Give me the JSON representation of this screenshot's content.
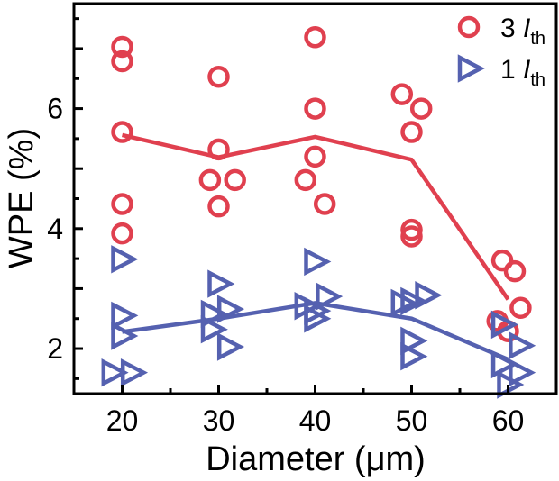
{
  "chart_data": {
    "type": "scatter",
    "title": "",
    "xlabel": "Diameter (μm)",
    "ylabel": "WPE (%)",
    "xlim": [
      15,
      65
    ],
    "ylim": [
      1.25,
      7.75
    ],
    "xticks": [
      20,
      30,
      40,
      50,
      60
    ],
    "yticks": [
      2,
      4,
      6
    ],
    "grid": false,
    "legend_position": "top-right",
    "series": [
      {
        "name": "3 Ith",
        "legend_number": "3",
        "legend_symbol": "I",
        "legend_subscript": "th",
        "marker": "circle-open",
        "color": "#e0404f",
        "points": [
          [
            20,
            7.03
          ],
          [
            20,
            6.79
          ],
          [
            20,
            5.61
          ],
          [
            20,
            4.41
          ],
          [
            20,
            3.92
          ],
          [
            30,
            6.53
          ],
          [
            30,
            5.32
          ],
          [
            29.1,
            4.81
          ],
          [
            31.7,
            4.81
          ],
          [
            30,
            4.37
          ],
          [
            40,
            7.19
          ],
          [
            40,
            6.0
          ],
          [
            40,
            5.2
          ],
          [
            39.0,
            4.81
          ],
          [
            41.0,
            4.41
          ],
          [
            49.0,
            6.24
          ],
          [
            51.0,
            6.0
          ],
          [
            50,
            5.61
          ],
          [
            50,
            3.98
          ],
          [
            50,
            3.87
          ],
          [
            59.4,
            3.47
          ],
          [
            60.7,
            3.29
          ],
          [
            61.3,
            2.68
          ],
          [
            58.9,
            2.46
          ],
          [
            60,
            2.29
          ]
        ],
        "line": [
          [
            20,
            5.56
          ],
          [
            30,
            5.19
          ],
          [
            40,
            5.53
          ],
          [
            50,
            5.15
          ],
          [
            60,
            2.82
          ]
        ]
      },
      {
        "name": "1 Ith",
        "legend_number": "1",
        "legend_symbol": "I",
        "legend_subscript": "th",
        "marker": "triangle-right-open",
        "color": "#5561b0",
        "points": [
          [
            20,
            3.49
          ],
          [
            20,
            2.55
          ],
          [
            20,
            2.21
          ],
          [
            19,
            1.6
          ],
          [
            21,
            1.6
          ],
          [
            30,
            3.08
          ],
          [
            29.3,
            2.58
          ],
          [
            31,
            2.66
          ],
          [
            29.3,
            2.32
          ],
          [
            31,
            2.03
          ],
          [
            40,
            3.45
          ],
          [
            39,
            2.71
          ],
          [
            41.2,
            2.87
          ],
          [
            40,
            2.63
          ],
          [
            40,
            2.5
          ],
          [
            49,
            2.76
          ],
          [
            50,
            2.79
          ],
          [
            51.5,
            2.89
          ],
          [
            50,
            2.13
          ],
          [
            50,
            1.87
          ],
          [
            59.4,
            1.74
          ],
          [
            61.2,
            2.05
          ],
          [
            61.2,
            1.6
          ],
          [
            60,
            1.4
          ],
          [
            59.4,
            2.4
          ]
        ],
        "line": [
          [
            20,
            2.28
          ],
          [
            30,
            2.5
          ],
          [
            40,
            2.76
          ],
          [
            50,
            2.5
          ],
          [
            60,
            1.82
          ]
        ]
      }
    ]
  }
}
